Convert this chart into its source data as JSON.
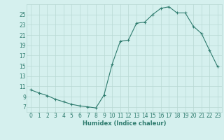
{
  "x": [
    0,
    1,
    2,
    3,
    4,
    5,
    6,
    7,
    8,
    9,
    10,
    11,
    12,
    13,
    14,
    15,
    16,
    17,
    18,
    19,
    20,
    21,
    22,
    23
  ],
  "y": [
    10.3,
    9.7,
    9.2,
    8.5,
    8.0,
    7.5,
    7.2,
    7.0,
    6.8,
    9.3,
    15.3,
    19.8,
    20.0,
    23.3,
    23.5,
    25.0,
    26.2,
    26.5,
    25.3,
    25.3,
    22.7,
    21.3,
    18.0,
    14.8
  ],
  "title": "",
  "xlabel": "Humidex (Indice chaleur)",
  "ylabel": "",
  "line_color": "#2e7b6e",
  "marker_color": "#2e7b6e",
  "bg_color": "#d5f0ee",
  "grid_color": "#b8d8d4",
  "text_color": "#2e7b6e",
  "ylim": [
    6,
    27
  ],
  "xlim": [
    -0.5,
    23.5
  ],
  "yticks": [
    7,
    9,
    11,
    13,
    15,
    17,
    19,
    21,
    23,
    25
  ],
  "xticks": [
    0,
    1,
    2,
    3,
    4,
    5,
    6,
    7,
    8,
    9,
    10,
    11,
    12,
    13,
    14,
    15,
    16,
    17,
    18,
    19,
    20,
    21,
    22,
    23
  ],
  "xlabel_fontsize": 6.0,
  "tick_fontsize": 5.5
}
